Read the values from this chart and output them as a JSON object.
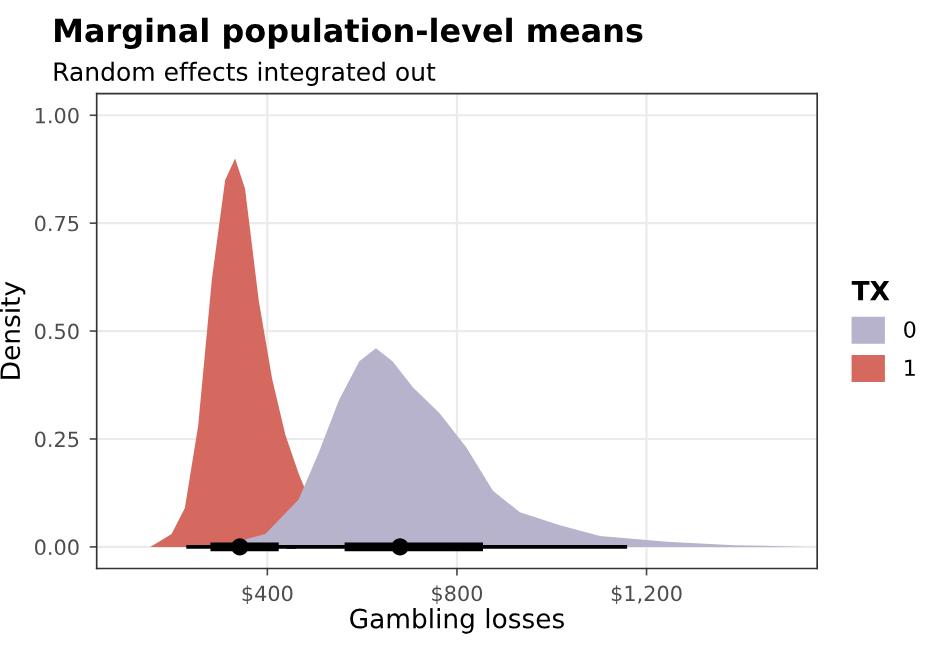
{
  "chart_data": {
    "type": "area",
    "title": "Marginal population-level means",
    "subtitle": "Random effects integrated out",
    "xlabel": "Gambling losses",
    "ylabel": "Density",
    "legend_title": "TX",
    "legend": "right",
    "grid": true,
    "xlim": [
      40,
      1560
    ],
    "ylim": [
      -0.05,
      1.05
    ],
    "xticks": [
      {
        "value": 400,
        "label": "$400"
      },
      {
        "value": 800,
        "label": "$800"
      },
      {
        "value": 1200,
        "label": "$1,200"
      }
    ],
    "yticks": [
      {
        "value": 0,
        "label": "0.00"
      },
      {
        "value": 0.25,
        "label": "0.25"
      },
      {
        "value": 0.5,
        "label": "0.50"
      },
      {
        "value": 0.75,
        "label": "0.75"
      },
      {
        "value": 1,
        "label": "1.00"
      }
    ],
    "series": [
      {
        "name": "0",
        "color": "#b8b3cc",
        "x": [
          297,
          396,
          466,
          509,
          551,
          594,
          629,
          664,
          707,
          763,
          820,
          876,
          933,
          1017,
          1102,
          1243,
          1385,
          1540
        ],
        "values": [
          0,
          0.03,
          0.11,
          0.22,
          0.34,
          0.43,
          0.46,
          0.43,
          0.37,
          0.31,
          0.23,
          0.13,
          0.08,
          0.05,
          0.025,
          0.012,
          0.004,
          0
        ]
      },
      {
        "name": "1",
        "color": "#d5695f",
        "x": [
          153,
          198,
          226,
          254,
          283,
          311,
          332,
          353,
          382,
          410,
          438,
          466,
          530
        ],
        "values": [
          0,
          0.03,
          0.09,
          0.28,
          0.62,
          0.85,
          0.9,
          0.83,
          0.57,
          0.39,
          0.26,
          0.17,
          0
        ]
      },
      {
        "type": "line",
        "color": "#000000",
        "x": [
          280,
          424
        ],
        "values": [
          0,
          0
        ]
      },
      {
        "type": "line",
        "color": "#000000",
        "x": [
          563,
          855
        ],
        "values": [
          0,
          0
        ]
      },
      {
        "type": "scatter",
        "color": "#000000",
        "marker": "circle",
        "x": [
          342,
          680
        ],
        "values": [
          0,
          0
        ],
        "xerrors": [
          [
            229,
            460
          ],
          [
            440,
            1159
          ]
        ]
      }
    ]
  }
}
